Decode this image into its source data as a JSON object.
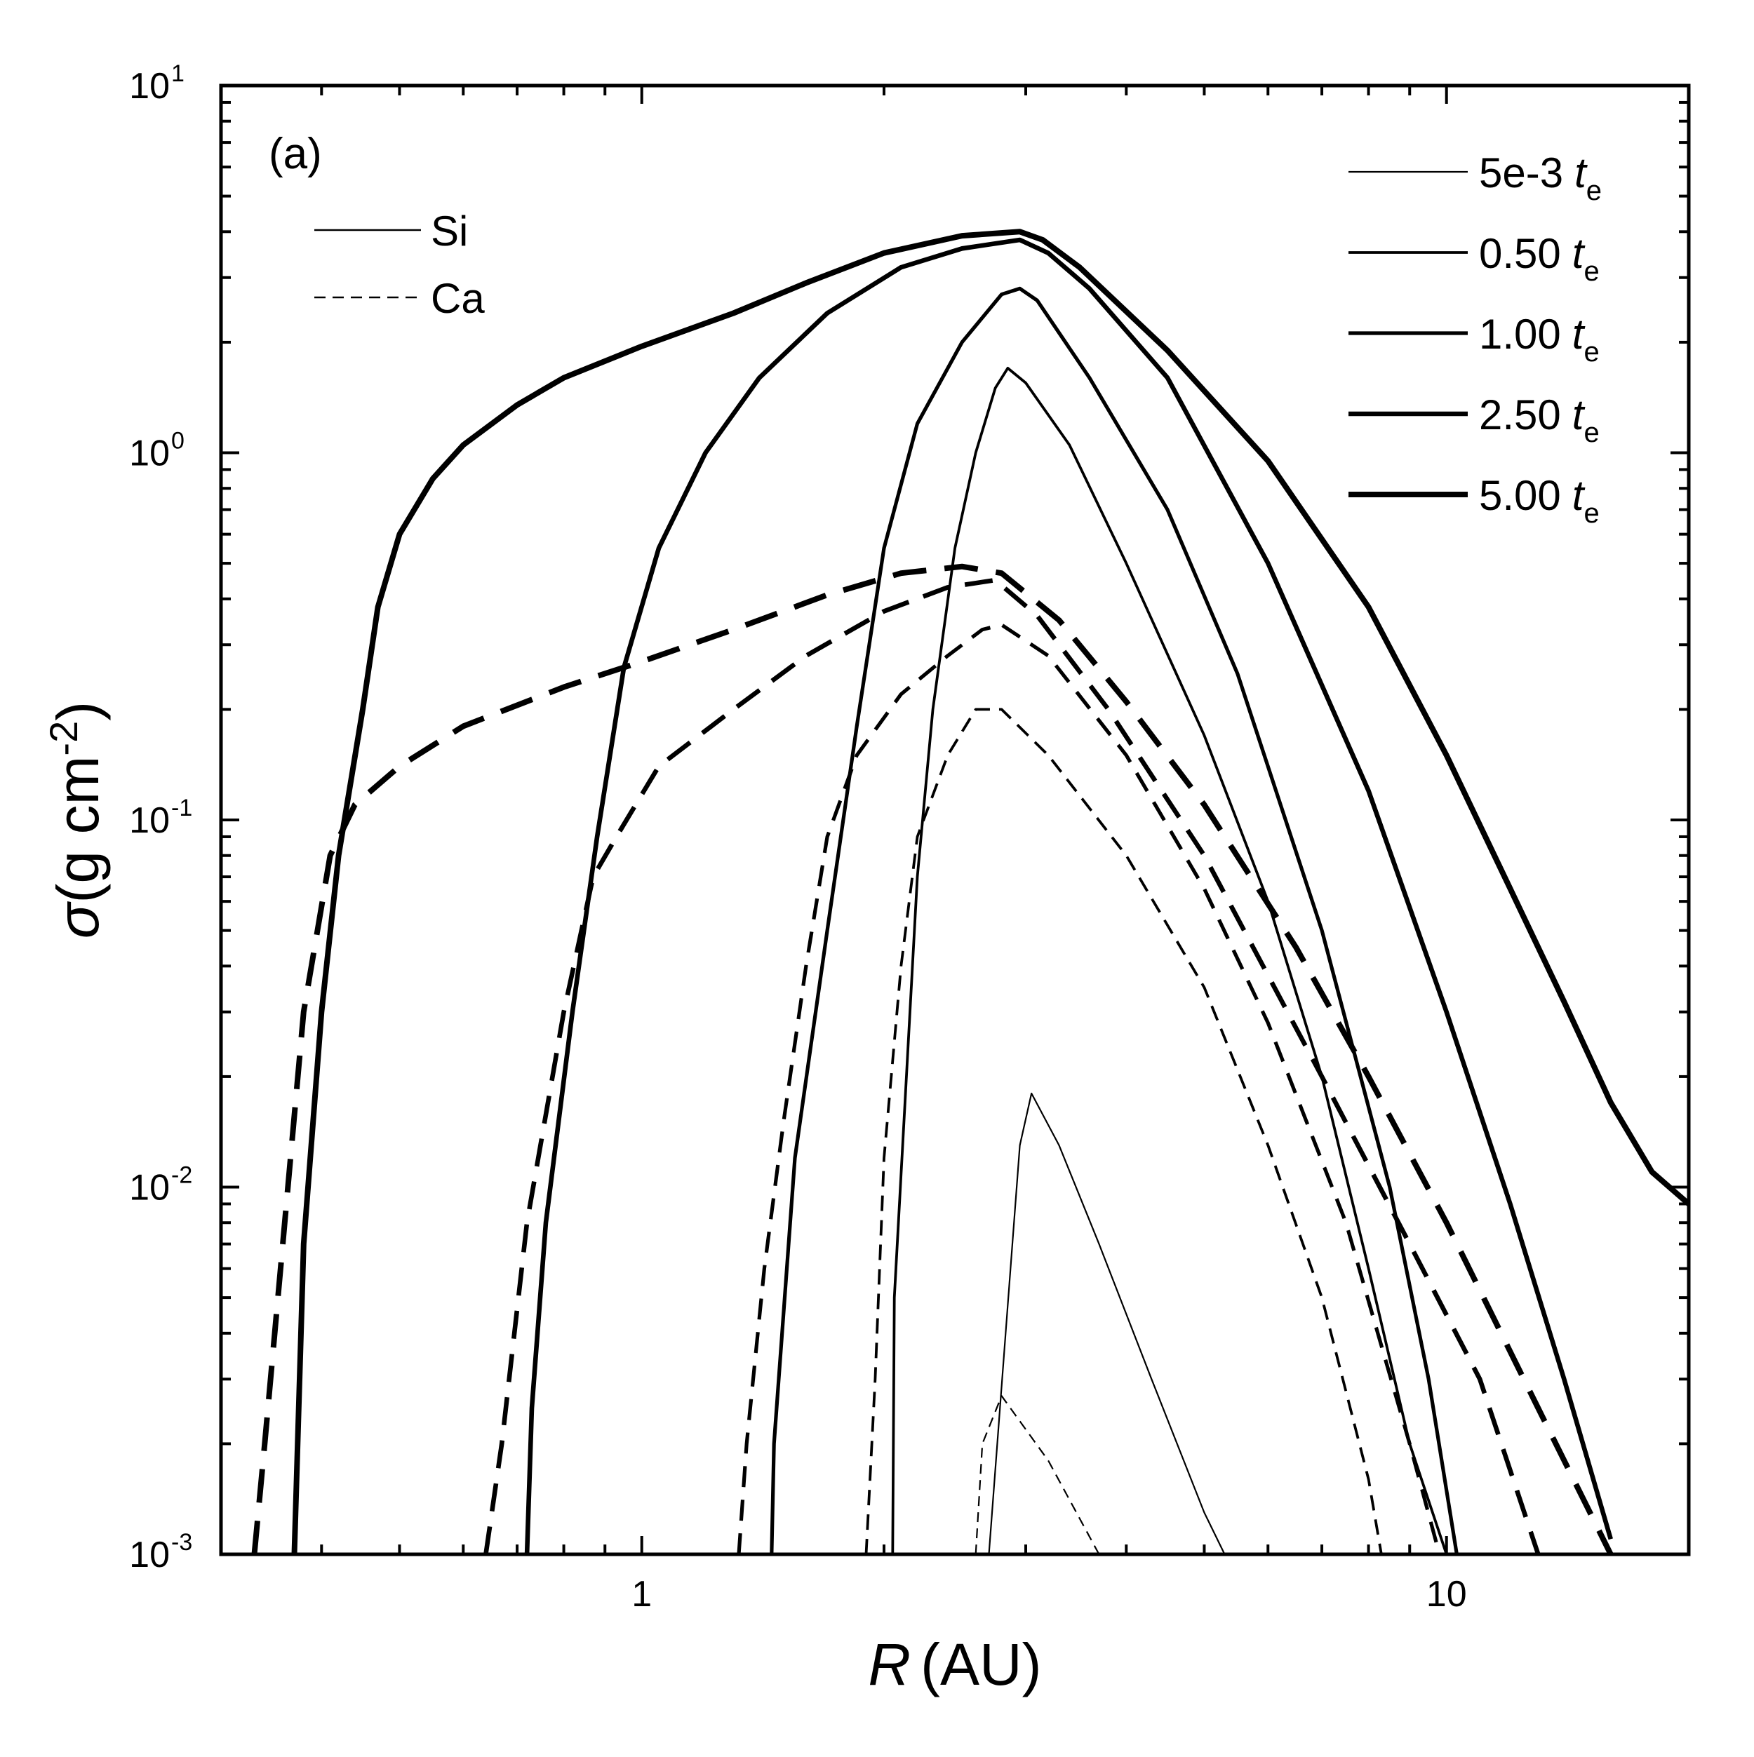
{
  "chart_data": {
    "type": "line",
    "panel_label": "(a)",
    "xlabel": {
      "symbol": "R",
      "unit": "(AU)"
    },
    "ylabel": {
      "symbol": "σ",
      "unit_pre": "(g cm",
      "unit_sup": "-2",
      "unit_post": ")"
    },
    "xscale": "log",
    "yscale": "log",
    "xlim": [
      0.3,
      20
    ],
    "ylim": [
      0.001,
      10
    ],
    "x_ticks": [
      {
        "value": 1,
        "label": "1"
      },
      {
        "value": 10,
        "label": "10"
      }
    ],
    "y_ticks": [
      {
        "value": 0.001,
        "base": "10",
        "exp": "-3"
      },
      {
        "value": 0.01,
        "base": "10",
        "exp": "-2"
      },
      {
        "value": 0.1,
        "base": "10",
        "exp": "-1"
      },
      {
        "value": 1,
        "base": "10",
        "exp": "0"
      },
      {
        "value": 10,
        "base": "10",
        "exp": "1"
      }
    ],
    "grid": false,
    "legend_species": {
      "placement": "top-left",
      "items": [
        {
          "label": "Si",
          "style": "solid"
        },
        {
          "label": "Ca",
          "style": "dashed"
        }
      ]
    },
    "legend_times": {
      "placement": "top-right",
      "unit_symbol": "t",
      "unit_sub": "e",
      "items": [
        {
          "label": "5e-3",
          "weight": 1
        },
        {
          "label": "0.50",
          "weight": 2
        },
        {
          "label": "1.00",
          "weight": 3
        },
        {
          "label": "2.50",
          "weight": 4
        },
        {
          "label": "5.00",
          "weight": 5
        }
      ]
    },
    "series": [
      {
        "species": "Si",
        "time": "5e-3",
        "style": "solid",
        "weight": 1,
        "points": [
          [
            2.7,
            0.001
          ],
          [
            2.95,
            0.013
          ],
          [
            3.05,
            0.018
          ],
          [
            3.3,
            0.013
          ],
          [
            3.7,
            0.007
          ],
          [
            4.3,
            0.003
          ],
          [
            5.0,
            0.0013
          ],
          [
            5.3,
            0.001
          ]
        ]
      },
      {
        "species": "Si",
        "time": "0.50",
        "style": "solid",
        "weight": 2,
        "points": [
          [
            2.05,
            0.001
          ],
          [
            2.06,
            0.005
          ],
          [
            2.2,
            0.07
          ],
          [
            2.3,
            0.2
          ],
          [
            2.45,
            0.55
          ],
          [
            2.6,
            1.0
          ],
          [
            2.75,
            1.5
          ],
          [
            2.85,
            1.7
          ],
          [
            3.0,
            1.55
          ],
          [
            3.4,
            1.05
          ],
          [
            4.0,
            0.5
          ],
          [
            5.0,
            0.17
          ],
          [
            6.0,
            0.06
          ],
          [
            7.0,
            0.02
          ],
          [
            8.0,
            0.006
          ],
          [
            9.0,
            0.002
          ],
          [
            10.0,
            0.001
          ]
        ]
      },
      {
        "species": "Si",
        "time": "1.00",
        "style": "solid",
        "weight": 3,
        "points": [
          [
            1.45,
            0.001
          ],
          [
            1.46,
            0.002
          ],
          [
            1.55,
            0.012
          ],
          [
            1.7,
            0.05
          ],
          [
            1.85,
            0.18
          ],
          [
            2.0,
            0.55
          ],
          [
            2.2,
            1.2
          ],
          [
            2.5,
            2.0
          ],
          [
            2.8,
            2.7
          ],
          [
            2.95,
            2.8
          ],
          [
            3.1,
            2.6
          ],
          [
            3.6,
            1.6
          ],
          [
            4.5,
            0.7
          ],
          [
            5.5,
            0.25
          ],
          [
            7.0,
            0.05
          ],
          [
            8.5,
            0.01
          ],
          [
            9.5,
            0.003
          ],
          [
            10.3,
            0.001
          ]
        ]
      },
      {
        "species": "Si",
        "time": "2.50",
        "style": "solid",
        "weight": 4,
        "points": [
          [
            0.72,
            0.001
          ],
          [
            0.73,
            0.0025
          ],
          [
            0.76,
            0.008
          ],
          [
            0.82,
            0.03
          ],
          [
            0.88,
            0.09
          ],
          [
            0.95,
            0.26
          ],
          [
            1.05,
            0.55
          ],
          [
            1.2,
            1.0
          ],
          [
            1.4,
            1.6
          ],
          [
            1.7,
            2.4
          ],
          [
            2.1,
            3.2
          ],
          [
            2.5,
            3.6
          ],
          [
            2.95,
            3.8
          ],
          [
            3.2,
            3.5
          ],
          [
            3.6,
            2.8
          ],
          [
            4.5,
            1.6
          ],
          [
            6.0,
            0.5
          ],
          [
            8.0,
            0.12
          ],
          [
            10.0,
            0.03
          ],
          [
            12.0,
            0.009
          ],
          [
            14.0,
            0.003
          ],
          [
            16.0,
            0.0011
          ]
        ]
      },
      {
        "species": "Si",
        "time": "5.00",
        "style": "solid",
        "weight": 5,
        "points": [
          [
            0.37,
            0.001
          ],
          [
            0.38,
            0.007
          ],
          [
            0.4,
            0.03
          ],
          [
            0.42,
            0.08
          ],
          [
            0.45,
            0.2
          ],
          [
            0.47,
            0.38
          ],
          [
            0.5,
            0.6
          ],
          [
            0.55,
            0.85
          ],
          [
            0.6,
            1.05
          ],
          [
            0.7,
            1.35
          ],
          [
            0.8,
            1.6
          ],
          [
            1.0,
            1.95
          ],
          [
            1.3,
            2.4
          ],
          [
            1.6,
            2.9
          ],
          [
            2.0,
            3.5
          ],
          [
            2.5,
            3.9
          ],
          [
            2.95,
            4.0
          ],
          [
            3.15,
            3.8
          ],
          [
            3.5,
            3.2
          ],
          [
            4.5,
            1.9
          ],
          [
            6.0,
            0.95
          ],
          [
            8.0,
            0.38
          ],
          [
            10.0,
            0.15
          ],
          [
            12.0,
            0.065
          ],
          [
            14.0,
            0.032
          ],
          [
            16.0,
            0.017
          ],
          [
            18.0,
            0.011
          ],
          [
            20.0,
            0.009
          ]
        ]
      },
      {
        "species": "Ca",
        "time": "5e-3",
        "style": "dashed",
        "weight": 1,
        "points": [
          [
            2.6,
            0.001
          ],
          [
            2.65,
            0.002
          ],
          [
            2.8,
            0.0027
          ],
          [
            3.2,
            0.0018
          ],
          [
            3.7,
            0.001
          ]
        ]
      },
      {
        "species": "Ca",
        "time": "0.50",
        "style": "dashed",
        "weight": 2,
        "points": [
          [
            1.9,
            0.001
          ],
          [
            1.95,
            0.003
          ],
          [
            2.0,
            0.012
          ],
          [
            2.1,
            0.04
          ],
          [
            2.2,
            0.09
          ],
          [
            2.4,
            0.15
          ],
          [
            2.6,
            0.2
          ],
          [
            2.8,
            0.2
          ],
          [
            3.2,
            0.15
          ],
          [
            4.0,
            0.08
          ],
          [
            5.0,
            0.035
          ],
          [
            6.0,
            0.013
          ],
          [
            7.0,
            0.005
          ],
          [
            8.0,
            0.0016
          ],
          [
            8.3,
            0.001
          ]
        ]
      },
      {
        "species": "Ca",
        "time": "1.00",
        "style": "dashed",
        "weight": 3,
        "points": [
          [
            1.32,
            0.001
          ],
          [
            1.35,
            0.002
          ],
          [
            1.42,
            0.006
          ],
          [
            1.5,
            0.015
          ],
          [
            1.6,
            0.04
          ],
          [
            1.7,
            0.09
          ],
          [
            1.85,
            0.15
          ],
          [
            2.1,
            0.22
          ],
          [
            2.4,
            0.28
          ],
          [
            2.65,
            0.33
          ],
          [
            2.8,
            0.34
          ],
          [
            3.2,
            0.28
          ],
          [
            4.0,
            0.15
          ],
          [
            5.0,
            0.065
          ],
          [
            6.0,
            0.028
          ],
          [
            7.5,
            0.008
          ],
          [
            9.0,
            0.002
          ],
          [
            9.8,
            0.001
          ]
        ]
      },
      {
        "species": "Ca",
        "time": "2.50",
        "style": "dashed",
        "weight": 4,
        "points": [
          [
            0.64,
            0.001
          ],
          [
            0.67,
            0.002
          ],
          [
            0.72,
            0.008
          ],
          [
            0.8,
            0.03
          ],
          [
            0.87,
            0.07
          ],
          [
            0.93,
            0.09
          ],
          [
            1.05,
            0.14
          ],
          [
            1.3,
            0.2
          ],
          [
            1.6,
            0.28
          ],
          [
            2.0,
            0.37
          ],
          [
            2.4,
            0.43
          ],
          [
            2.75,
            0.45
          ],
          [
            3.1,
            0.36
          ],
          [
            3.8,
            0.2
          ],
          [
            5.0,
            0.08
          ],
          [
            7.0,
            0.02
          ],
          [
            9.0,
            0.007
          ],
          [
            11.0,
            0.003
          ],
          [
            13.0,
            0.001
          ]
        ]
      },
      {
        "species": "Ca",
        "time": "5.00",
        "style": "dashed",
        "weight": 5,
        "points": [
          [
            0.33,
            0.001
          ],
          [
            0.34,
            0.002
          ],
          [
            0.36,
            0.008
          ],
          [
            0.38,
            0.03
          ],
          [
            0.41,
            0.08
          ],
          [
            0.44,
            0.11
          ],
          [
            0.5,
            0.14
          ],
          [
            0.6,
            0.18
          ],
          [
            0.8,
            0.23
          ],
          [
            1.0,
            0.27
          ],
          [
            1.3,
            0.33
          ],
          [
            1.7,
            0.41
          ],
          [
            2.1,
            0.47
          ],
          [
            2.5,
            0.49
          ],
          [
            2.8,
            0.47
          ],
          [
            3.3,
            0.35
          ],
          [
            4.0,
            0.21
          ],
          [
            5.0,
            0.11
          ],
          [
            6.5,
            0.045
          ],
          [
            8.0,
            0.02
          ],
          [
            10.0,
            0.008
          ],
          [
            13.0,
            0.0025
          ],
          [
            16.0,
            0.001
          ]
        ]
      }
    ]
  }
}
